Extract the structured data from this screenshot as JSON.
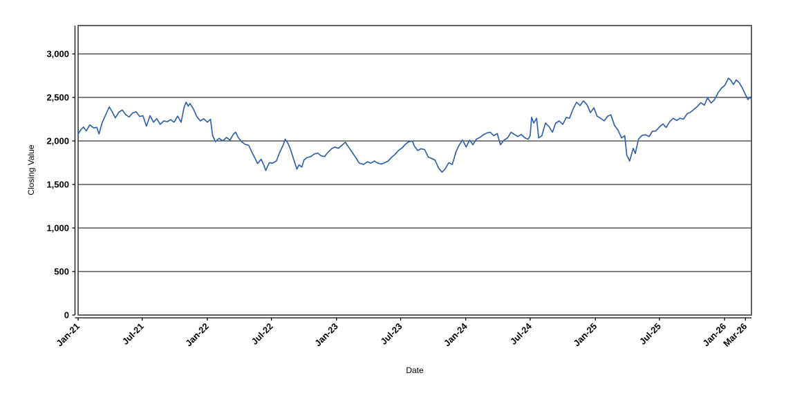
{
  "chart_data": {
    "type": "line",
    "title": "",
    "xlabel": "Date",
    "ylabel": "Closing Value",
    "legend": "none",
    "grid": "horizontal-only",
    "plot_background": "#ffffff",
    "gridline_color": "#000000",
    "frame_color": "#3a3a3a",
    "axis_line_color": "#000000",
    "line_color": "#3263a8",
    "ylim": [
      0,
      3325
    ],
    "xlim": [
      "2021-01-01",
      "2026-03-18"
    ],
    "y_tick_values": [
      0,
      500,
      1000,
      1500,
      2000,
      2500,
      3000
    ],
    "y_tick_labels": [
      "0",
      "500",
      "1,000",
      "1,500",
      "2,000",
      "2,500",
      "3,000"
    ],
    "x_tick_dates": [
      "2021-01-01",
      "2021-07-01",
      "2022-01-01",
      "2022-07-01",
      "2023-01-01",
      "2023-07-01",
      "2024-01-01",
      "2024-07-01",
      "2025-01-01",
      "2025-07-01",
      "2026-01-01",
      "2026-03-01"
    ],
    "x_tick_labels": [
      "Jan-21",
      "Jul-21",
      "Jan-22",
      "Jul-22",
      "Jan-23",
      "Jul-23",
      "Jan-24",
      "Jul-24",
      "Jan-25",
      "Jul-25",
      "Jan-26",
      "Mar-26"
    ],
    "series": [
      {
        "name": "Closing Value",
        "points": [
          [
            "2021-01-01",
            2080
          ],
          [
            "2021-01-09",
            2130
          ],
          [
            "2021-01-16",
            2160
          ],
          [
            "2021-01-24",
            2115
          ],
          [
            "2021-02-03",
            2185
          ],
          [
            "2021-02-14",
            2150
          ],
          [
            "2021-02-23",
            2155
          ],
          [
            "2021-03-01",
            2080
          ],
          [
            "2021-03-10",
            2210
          ],
          [
            "2021-03-20",
            2300
          ],
          [
            "2021-03-30",
            2390
          ],
          [
            "2021-04-08",
            2330
          ],
          [
            "2021-04-16",
            2265
          ],
          [
            "2021-04-26",
            2330
          ],
          [
            "2021-05-06",
            2355
          ],
          [
            "2021-05-16",
            2300
          ],
          [
            "2021-05-25",
            2275
          ],
          [
            "2021-06-04",
            2320
          ],
          [
            "2021-06-14",
            2335
          ],
          [
            "2021-06-24",
            2280
          ],
          [
            "2021-07-03",
            2290
          ],
          [
            "2021-07-13",
            2170
          ],
          [
            "2021-07-23",
            2290
          ],
          [
            "2021-08-02",
            2215
          ],
          [
            "2021-08-11",
            2255
          ],
          [
            "2021-08-21",
            2190
          ],
          [
            "2021-08-31",
            2230
          ],
          [
            "2021-09-10",
            2220
          ],
          [
            "2021-09-19",
            2245
          ],
          [
            "2021-09-29",
            2215
          ],
          [
            "2021-10-09",
            2285
          ],
          [
            "2021-10-19",
            2215
          ],
          [
            "2021-10-27",
            2380
          ],
          [
            "2021-11-02",
            2445
          ],
          [
            "2021-11-08",
            2400
          ],
          [
            "2021-11-13",
            2430
          ],
          [
            "2021-11-23",
            2365
          ],
          [
            "2021-12-02",
            2280
          ],
          [
            "2021-12-12",
            2230
          ],
          [
            "2021-12-22",
            2255
          ],
          [
            "2022-01-01",
            2215
          ],
          [
            "2022-01-10",
            2250
          ],
          [
            "2022-01-16",
            2060
          ],
          [
            "2022-01-24",
            1990
          ],
          [
            "2022-02-03",
            2030
          ],
          [
            "2022-02-14",
            2000
          ],
          [
            "2022-02-24",
            2040
          ],
          [
            "2022-03-06",
            2010
          ],
          [
            "2022-03-16",
            2080
          ],
          [
            "2022-03-22",
            2100
          ],
          [
            "2022-03-29",
            2040
          ],
          [
            "2022-04-08",
            1990
          ],
          [
            "2022-04-18",
            1960
          ],
          [
            "2022-04-28",
            1950
          ],
          [
            "2022-05-07",
            1870
          ],
          [
            "2022-05-17",
            1790
          ],
          [
            "2022-05-23",
            1740
          ],
          [
            "2022-06-02",
            1790
          ],
          [
            "2022-06-10",
            1720
          ],
          [
            "2022-06-15",
            1660
          ],
          [
            "2022-06-25",
            1750
          ],
          [
            "2022-07-05",
            1745
          ],
          [
            "2022-07-15",
            1770
          ],
          [
            "2022-07-24",
            1865
          ],
          [
            "2022-08-03",
            1950
          ],
          [
            "2022-08-09",
            2020
          ],
          [
            "2022-08-17",
            1970
          ],
          [
            "2022-08-23",
            1915
          ],
          [
            "2022-09-01",
            1800
          ],
          [
            "2022-09-11",
            1675
          ],
          [
            "2022-09-17",
            1725
          ],
          [
            "2022-09-25",
            1700
          ],
          [
            "2022-10-01",
            1780
          ],
          [
            "2022-10-10",
            1810
          ],
          [
            "2022-10-20",
            1820
          ],
          [
            "2022-10-30",
            1850
          ],
          [
            "2022-11-09",
            1860
          ],
          [
            "2022-11-18",
            1830
          ],
          [
            "2022-11-28",
            1820
          ],
          [
            "2022-12-08",
            1870
          ],
          [
            "2022-12-18",
            1910
          ],
          [
            "2022-12-27",
            1930
          ],
          [
            "2023-01-06",
            1915
          ],
          [
            "2023-01-16",
            1950
          ],
          [
            "2023-01-26",
            1985
          ],
          [
            "2023-02-04",
            1930
          ],
          [
            "2023-02-14",
            1870
          ],
          [
            "2023-02-24",
            1810
          ],
          [
            "2023-03-06",
            1745
          ],
          [
            "2023-03-19",
            1730
          ],
          [
            "2023-03-29",
            1760
          ],
          [
            "2023-04-08",
            1745
          ],
          [
            "2023-04-18",
            1770
          ],
          [
            "2023-04-27",
            1745
          ],
          [
            "2023-05-07",
            1735
          ],
          [
            "2023-05-17",
            1750
          ],
          [
            "2023-05-27",
            1770
          ],
          [
            "2023-06-05",
            1810
          ],
          [
            "2023-06-15",
            1845
          ],
          [
            "2023-06-25",
            1890
          ],
          [
            "2023-07-05",
            1920
          ],
          [
            "2023-07-14",
            1960
          ],
          [
            "2023-07-24",
            1990
          ],
          [
            "2023-08-03",
            2000
          ],
          [
            "2023-08-09",
            1940
          ],
          [
            "2023-08-18",
            1890
          ],
          [
            "2023-08-28",
            1910
          ],
          [
            "2023-09-07",
            1900
          ],
          [
            "2023-09-17",
            1815
          ],
          [
            "2023-09-26",
            1800
          ],
          [
            "2023-10-06",
            1780
          ],
          [
            "2023-10-16",
            1690
          ],
          [
            "2023-10-26",
            1640
          ],
          [
            "2023-11-04",
            1680
          ],
          [
            "2023-11-14",
            1750
          ],
          [
            "2023-11-24",
            1730
          ],
          [
            "2023-12-04",
            1870
          ],
          [
            "2023-12-13",
            1950
          ],
          [
            "2023-12-23",
            2010
          ],
          [
            "2024-01-02",
            1930
          ],
          [
            "2024-01-12",
            2010
          ],
          [
            "2024-01-21",
            1955
          ],
          [
            "2024-01-31",
            2020
          ],
          [
            "2024-02-10",
            2040
          ],
          [
            "2024-02-20",
            2070
          ],
          [
            "2024-02-29",
            2090
          ],
          [
            "2024-03-10",
            2100
          ],
          [
            "2024-03-20",
            2060
          ],
          [
            "2024-03-30",
            2085
          ],
          [
            "2024-04-08",
            1955
          ],
          [
            "2024-04-18",
            2010
          ],
          [
            "2024-04-28",
            2035
          ],
          [
            "2024-05-08",
            2100
          ],
          [
            "2024-05-17",
            2075
          ],
          [
            "2024-05-27",
            2050
          ],
          [
            "2024-06-06",
            2075
          ],
          [
            "2024-06-16",
            2035
          ],
          [
            "2024-06-25",
            2020
          ],
          [
            "2024-07-01",
            2060
          ],
          [
            "2024-07-05",
            2270
          ],
          [
            "2024-07-11",
            2205
          ],
          [
            "2024-07-19",
            2260
          ],
          [
            "2024-07-25",
            2035
          ],
          [
            "2024-08-03",
            2060
          ],
          [
            "2024-08-13",
            2205
          ],
          [
            "2024-08-23",
            2165
          ],
          [
            "2024-09-02",
            2100
          ],
          [
            "2024-09-11",
            2205
          ],
          [
            "2024-09-21",
            2230
          ],
          [
            "2024-10-01",
            2190
          ],
          [
            "2024-10-11",
            2270
          ],
          [
            "2024-10-20",
            2260
          ],
          [
            "2024-10-30",
            2365
          ],
          [
            "2024-11-09",
            2445
          ],
          [
            "2024-11-19",
            2405
          ],
          [
            "2024-11-28",
            2460
          ],
          [
            "2024-12-08",
            2420
          ],
          [
            "2024-12-18",
            2325
          ],
          [
            "2024-12-28",
            2380
          ],
          [
            "2025-01-06",
            2285
          ],
          [
            "2025-01-16",
            2260
          ],
          [
            "2025-01-26",
            2230
          ],
          [
            "2025-02-05",
            2285
          ],
          [
            "2025-02-14",
            2300
          ],
          [
            "2025-02-24",
            2180
          ],
          [
            "2025-03-06",
            2125
          ],
          [
            "2025-03-16",
            2035
          ],
          [
            "2025-03-25",
            2060
          ],
          [
            "2025-03-31",
            1835
          ],
          [
            "2025-04-08",
            1770
          ],
          [
            "2025-04-18",
            1915
          ],
          [
            "2025-04-24",
            1855
          ],
          [
            "2025-05-03",
            2020
          ],
          [
            "2025-05-13",
            2065
          ],
          [
            "2025-05-23",
            2070
          ],
          [
            "2025-06-02",
            2050
          ],
          [
            "2025-06-11",
            2110
          ],
          [
            "2025-06-21",
            2115
          ],
          [
            "2025-07-01",
            2160
          ],
          [
            "2025-07-11",
            2195
          ],
          [
            "2025-07-20",
            2155
          ],
          [
            "2025-07-30",
            2220
          ],
          [
            "2025-08-09",
            2260
          ],
          [
            "2025-08-19",
            2235
          ],
          [
            "2025-08-28",
            2260
          ],
          [
            "2025-09-07",
            2250
          ],
          [
            "2025-09-17",
            2310
          ],
          [
            "2025-09-27",
            2330
          ],
          [
            "2025-10-06",
            2360
          ],
          [
            "2025-10-16",
            2395
          ],
          [
            "2025-10-26",
            2440
          ],
          [
            "2025-11-05",
            2410
          ],
          [
            "2025-11-14",
            2495
          ],
          [
            "2025-11-24",
            2435
          ],
          [
            "2025-12-04",
            2475
          ],
          [
            "2025-12-14",
            2555
          ],
          [
            "2025-12-23",
            2605
          ],
          [
            "2026-01-02",
            2640
          ],
          [
            "2026-01-12",
            2720
          ],
          [
            "2026-01-18",
            2700
          ],
          [
            "2026-01-26",
            2650
          ],
          [
            "2026-02-03",
            2700
          ],
          [
            "2026-02-11",
            2670
          ],
          [
            "2026-02-20",
            2610
          ],
          [
            "2026-02-28",
            2540
          ],
          [
            "2026-03-08",
            2475
          ],
          [
            "2026-03-14",
            2505
          ],
          [
            "2026-03-18",
            2480
          ]
        ]
      }
    ]
  }
}
